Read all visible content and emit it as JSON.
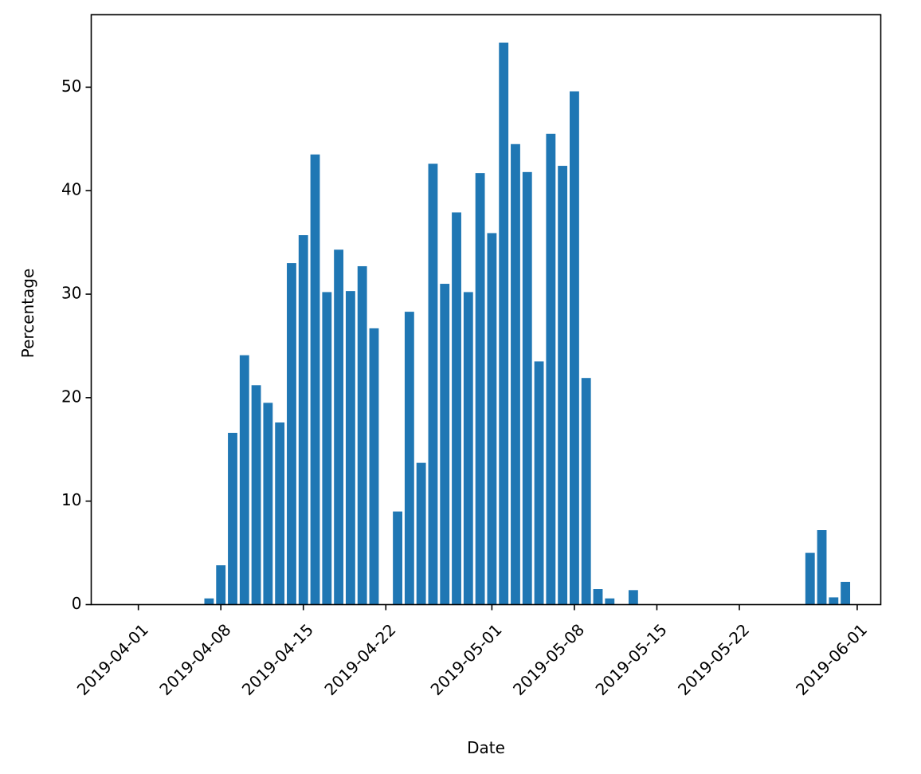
{
  "chart_data": {
    "type": "bar",
    "title": "",
    "xlabel": "Date",
    "ylabel": "Percentage",
    "bar_color": "#1f77b4",
    "x_is_dates": true,
    "xlim": [
      "2019-03-28",
      "2019-06-03"
    ],
    "ylim": [
      0,
      57
    ],
    "grid": false,
    "legend": "none",
    "x_ticks": [
      "2019-04-01",
      "2019-04-08",
      "2019-04-15",
      "2019-04-22",
      "2019-05-01",
      "2019-05-08",
      "2019-05-15",
      "2019-05-22",
      "2019-06-01"
    ],
    "y_ticks": [
      0,
      10,
      20,
      30,
      40,
      50
    ],
    "x_tick_labels": [
      "2019-04-01",
      "2019-04-08",
      "2019-04-15",
      "2019-04-22",
      "2019-05-01",
      "2019-05-08",
      "2019-05-15",
      "2019-05-22",
      "2019-06-01"
    ],
    "y_tick_labels": [
      "0",
      "10",
      "20",
      "30",
      "40",
      "50"
    ],
    "bars": [
      {
        "date": "2019-04-07",
        "value": 0.6
      },
      {
        "date": "2019-04-08",
        "value": 3.8
      },
      {
        "date": "2019-04-09",
        "value": 16.6
      },
      {
        "date": "2019-04-10",
        "value": 24.1
      },
      {
        "date": "2019-04-11",
        "value": 21.2
      },
      {
        "date": "2019-04-12",
        "value": 19.5
      },
      {
        "date": "2019-04-13",
        "value": 17.6
      },
      {
        "date": "2019-04-14",
        "value": 33.0
      },
      {
        "date": "2019-04-15",
        "value": 35.7
      },
      {
        "date": "2019-04-16",
        "value": 43.5
      },
      {
        "date": "2019-04-17",
        "value": 30.2
      },
      {
        "date": "2019-04-18",
        "value": 34.3
      },
      {
        "date": "2019-04-19",
        "value": 30.3
      },
      {
        "date": "2019-04-20",
        "value": 32.7
      },
      {
        "date": "2019-04-21",
        "value": 26.7
      },
      {
        "date": "2019-04-23",
        "value": 9.0
      },
      {
        "date": "2019-04-24",
        "value": 28.3
      },
      {
        "date": "2019-04-25",
        "value": 13.7
      },
      {
        "date": "2019-04-26",
        "value": 42.6
      },
      {
        "date": "2019-04-27",
        "value": 31.0
      },
      {
        "date": "2019-04-28",
        "value": 37.9
      },
      {
        "date": "2019-04-29",
        "value": 30.2
      },
      {
        "date": "2019-04-30",
        "value": 41.7
      },
      {
        "date": "2019-05-01",
        "value": 35.9
      },
      {
        "date": "2019-05-02",
        "value": 54.3
      },
      {
        "date": "2019-05-03",
        "value": 44.5
      },
      {
        "date": "2019-05-04",
        "value": 41.8
      },
      {
        "date": "2019-05-05",
        "value": 23.5
      },
      {
        "date": "2019-05-06",
        "value": 45.5
      },
      {
        "date": "2019-05-07",
        "value": 42.4
      },
      {
        "date": "2019-05-08",
        "value": 49.6
      },
      {
        "date": "2019-05-09",
        "value": 21.9
      },
      {
        "date": "2019-05-10",
        "value": 1.5
      },
      {
        "date": "2019-05-11",
        "value": 0.6
      },
      {
        "date": "2019-05-13",
        "value": 1.4
      },
      {
        "date": "2019-05-28",
        "value": 5.0
      },
      {
        "date": "2019-05-29",
        "value": 7.2
      },
      {
        "date": "2019-05-30",
        "value": 0.7
      },
      {
        "date": "2019-05-31",
        "value": 2.2
      }
    ]
  }
}
